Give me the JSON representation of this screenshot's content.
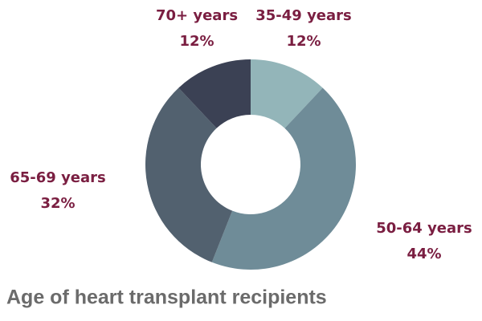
{
  "chart_data": {
    "type": "donut",
    "title": "Age of heart transplant recipients",
    "categories": [
      "35-49 years",
      "50-64 years",
      "65-69 years",
      "70+ years"
    ],
    "values": [
      12,
      44,
      32,
      12
    ],
    "value_labels": [
      "12%",
      "44%",
      "32%",
      "12%"
    ],
    "colors": [
      "#93b5b9",
      "#6f8c98",
      "#52616f",
      "#3b4154"
    ]
  }
}
